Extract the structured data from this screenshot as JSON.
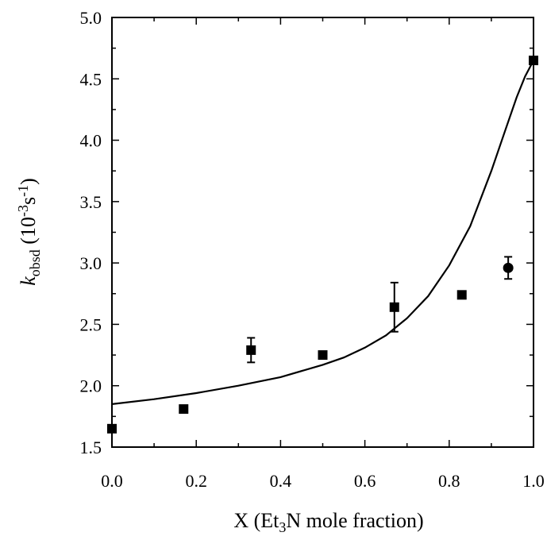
{
  "chart_data": {
    "type": "scatter",
    "xlabel": {
      "prefix": "X (Et",
      "sub": "3",
      "suffix": "N mole fraction)"
    },
    "ylabel": {
      "var": "k",
      "var_sub": "obsd",
      "unit_prefix": " (10",
      "unit_sup1": "-3",
      "unit_mid": "s",
      "unit_sup2": "-1",
      "unit_suffix": ")"
    },
    "xlim": [
      0.0,
      1.0
    ],
    "ylim": [
      1.5,
      5.0
    ],
    "x_ticks": [
      "0.0",
      "0.2",
      "0.4",
      "0.6",
      "0.8",
      "1.0"
    ],
    "y_ticks": [
      "1.5",
      "2.0",
      "2.5",
      "3.0",
      "3.5",
      "4.0",
      "4.5",
      "5.0"
    ],
    "grid": false,
    "series": [
      {
        "marker": "square",
        "points": [
          {
            "x": 0.0,
            "y": 1.65,
            "err": 0.03
          },
          {
            "x": 0.17,
            "y": 1.81,
            "err": 0.02
          },
          {
            "x": 0.33,
            "y": 2.29,
            "err": 0.1
          },
          {
            "x": 0.5,
            "y": 2.25,
            "err": 0.03
          },
          {
            "x": 0.67,
            "y": 2.64,
            "err": 0.2
          },
          {
            "x": 0.83,
            "y": 2.74,
            "err": 0.02
          },
          {
            "x": 1.0,
            "y": 4.65,
            "err": 0.02
          }
        ]
      },
      {
        "marker": "circle",
        "points": [
          {
            "x": 0.94,
            "y": 2.96,
            "err": 0.09
          }
        ]
      }
    ],
    "fit_curve": {
      "x": [
        0.0,
        0.1,
        0.2,
        0.3,
        0.4,
        0.5,
        0.55,
        0.6,
        0.65,
        0.7,
        0.75,
        0.8,
        0.85,
        0.9,
        0.93,
        0.96,
        0.98,
        1.0
      ],
      "y": [
        1.85,
        1.89,
        1.94,
        2.0,
        2.07,
        2.17,
        2.23,
        2.31,
        2.41,
        2.55,
        2.73,
        2.98,
        3.3,
        3.75,
        4.05,
        4.35,
        4.52,
        4.65
      ]
    }
  }
}
